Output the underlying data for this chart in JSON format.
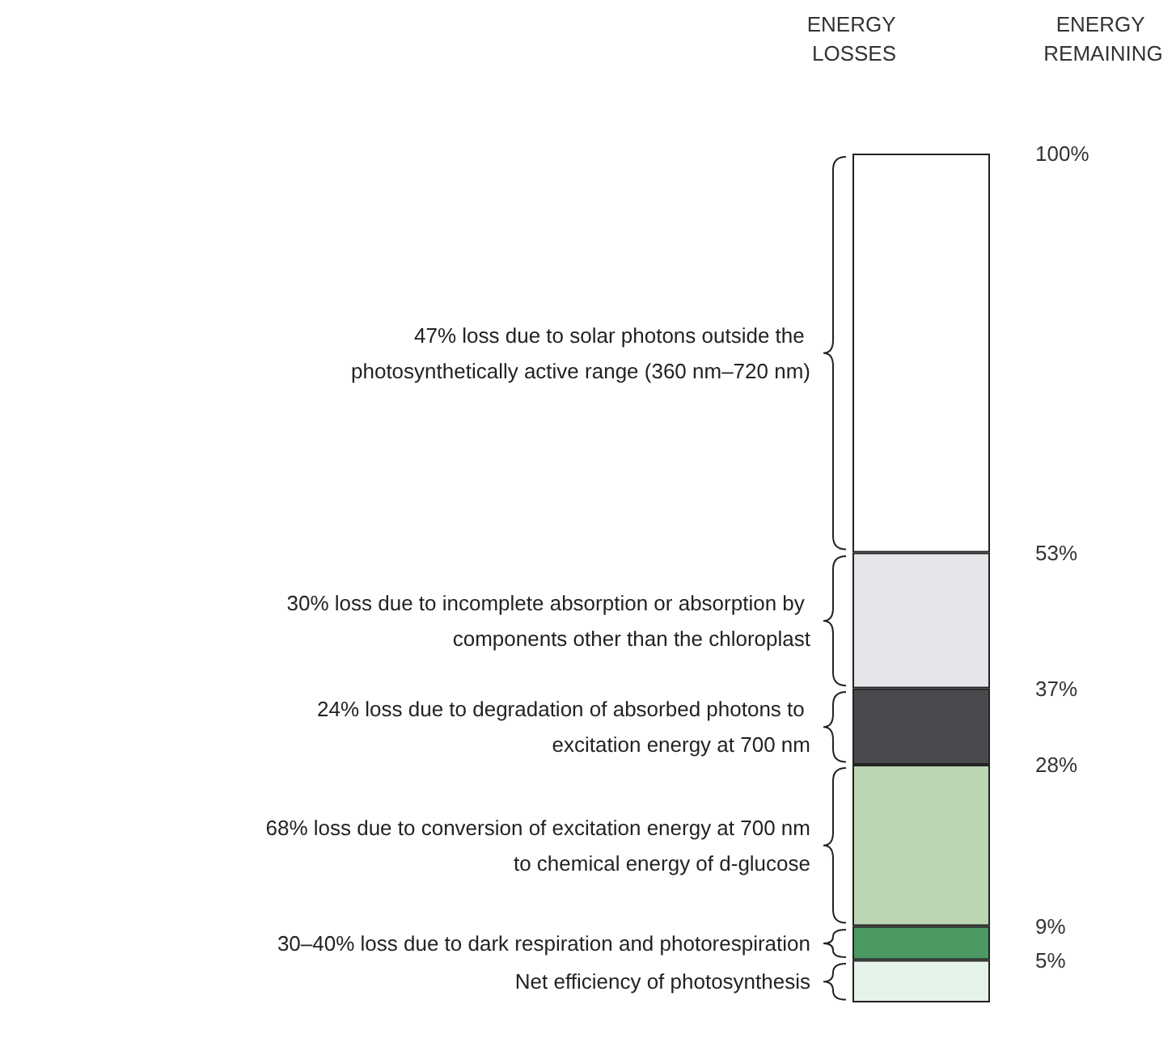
{
  "chart_data": {
    "type": "bar",
    "stacked": true,
    "categories": [
      null
    ],
    "series": [
      {
        "name": "Net efficiency of photosynthesis",
        "color": "#e4f2ea",
        "values": [
          5
        ]
      },
      {
        "name": "30–40% loss due to dark respiration and photorespiration",
        "color": "#4b9a63",
        "values": [
          4
        ]
      },
      {
        "name": "68% loss due to conversion of excitation energy at 700 nm to chemical energy of d-glucose",
        "color": "#bcd6b4",
        "values": [
          19
        ]
      },
      {
        "name": "24% loss due to degradation of absorbed photons to excitation energy at 700 nm",
        "color": "#4a4a4e",
        "values": [
          9
        ]
      },
      {
        "name": "30% loss due to incomplete absorption or absorption by components other than the chloroplast",
        "color": "#e6e6ea",
        "values": [
          16
        ]
      },
      {
        "name": "47% loss due to solar photons outside the photosynthetically active range (360 nm–720 nm)",
        "color": "#ffffff",
        "values": [
          47
        ]
      }
    ],
    "ylim": [
      0,
      100
    ],
    "yticks": [
      {
        "value": 100,
        "label": "100%"
      },
      {
        "value": 53,
        "label": "53%"
      },
      {
        "value": 37,
        "label": "37%"
      },
      {
        "value": 28,
        "label": "28%"
      },
      {
        "value": 9,
        "label": "9%"
      },
      {
        "value": 5,
        "label": "5%"
      }
    ],
    "tick_labels": "y",
    "legend": "left",
    "annotations": [
      "ENERGY LOSSES",
      "ENERGY REMAINING"
    ]
  }
}
